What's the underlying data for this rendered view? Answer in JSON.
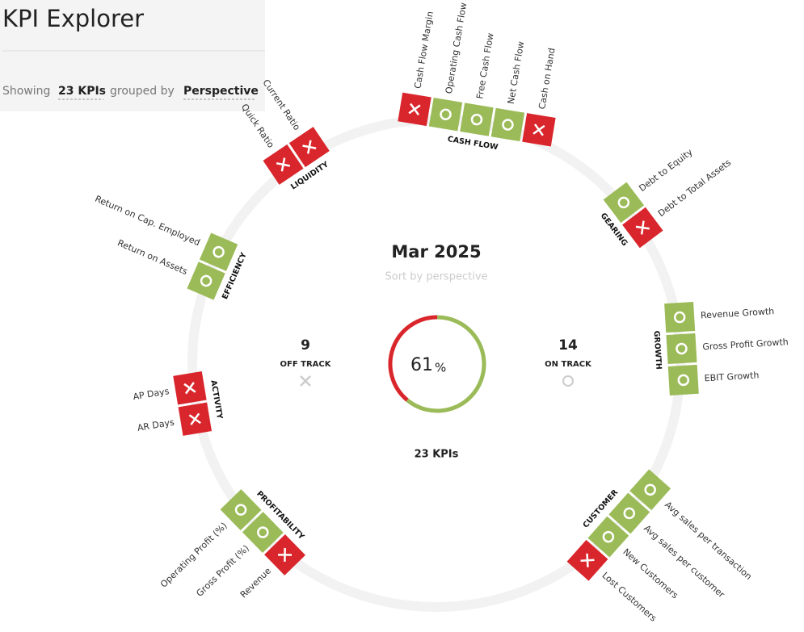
{
  "header": {
    "title": "KPI Explorer",
    "showing": "Showing",
    "kpi_count": "23 KPIs",
    "grouped_by": "grouped by",
    "group_field": "Perspective"
  },
  "center": {
    "period": "Mar 2025",
    "sort": "Sort by perspective",
    "off_track_count": 9,
    "off_track_label": "OFF TRACK",
    "on_track_count": 14,
    "on_track_label": "ON TRACK",
    "percent": 61,
    "percent_sign": "%",
    "total": "23 KPIs"
  },
  "groups": [
    {
      "name": "CASH FLOW",
      "kpis": [
        {
          "name": "Cash Flow Margin",
          "status": "off"
        },
        {
          "name": "Operating Cash Flow",
          "status": "on"
        },
        {
          "name": "Free Cash Flow",
          "status": "on"
        },
        {
          "name": "Net Cash Flow",
          "status": "on"
        },
        {
          "name": "Cash on Hand",
          "status": "off"
        }
      ]
    },
    {
      "name": "GEARING",
      "kpis": [
        {
          "name": "Debt to Equity",
          "status": "on"
        },
        {
          "name": "Debt to Total Assets",
          "status": "off"
        }
      ]
    },
    {
      "name": "GROWTH",
      "kpis": [
        {
          "name": "Revenue Growth",
          "status": "on"
        },
        {
          "name": "Gross Profit Growth",
          "status": "on"
        },
        {
          "name": "EBIT Growth",
          "status": "on"
        }
      ]
    },
    {
      "name": "CUSTOMER",
      "kpis": [
        {
          "name": "Avg sales per transaction",
          "status": "on"
        },
        {
          "name": "Avg sales per customer",
          "status": "on"
        },
        {
          "name": "New Customers",
          "status": "on"
        },
        {
          "name": "Lost Customers",
          "status": "off"
        }
      ]
    },
    {
      "name": "PROFITABILITY",
      "kpis": [
        {
          "name": "Operating Profit (%)",
          "status": "on"
        },
        {
          "name": "Gross Profit (%)",
          "status": "on"
        },
        {
          "name": "Revenue",
          "status": "off"
        }
      ]
    },
    {
      "name": "ACTIVITY",
      "kpis": [
        {
          "name": "AP Days",
          "status": "off"
        },
        {
          "name": "AR Days",
          "status": "off"
        }
      ]
    },
    {
      "name": "EFFICIENCY",
      "kpis": [
        {
          "name": "Return on Cap. Employed",
          "status": "on"
        },
        {
          "name": "Return on Assets",
          "status": "on"
        }
      ]
    },
    {
      "name": "LIQUIDITY",
      "kpis": [
        {
          "name": "Current Ratio",
          "status": "off"
        },
        {
          "name": "Quick Ratio",
          "status": "off"
        }
      ]
    }
  ]
}
